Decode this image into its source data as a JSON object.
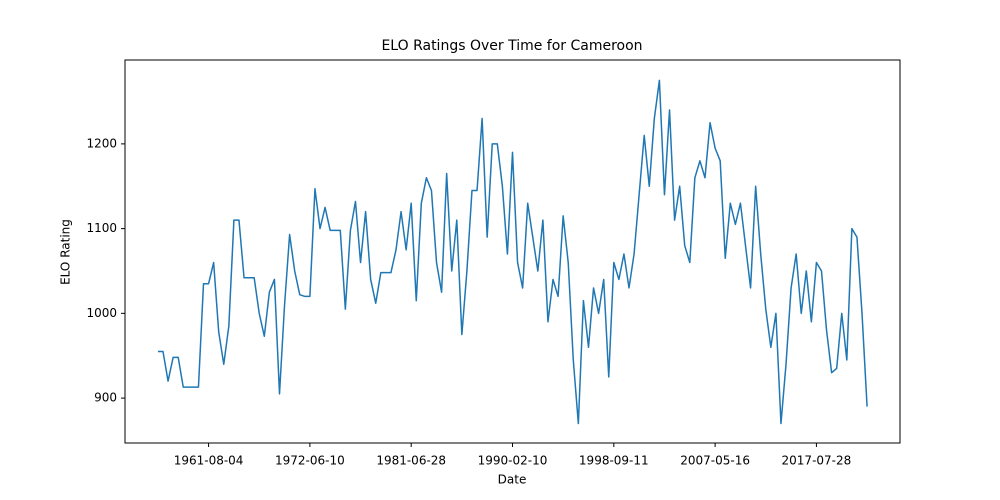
{
  "chart_data": {
    "type": "line",
    "title": "ELO Ratings Over Time for Cameroon",
    "x_label": "Date",
    "y_label": "ELO Rating",
    "categories": [
      null,
      null,
      null,
      null,
      null,
      null,
      null,
      null,
      null,
      null,
      "1961-08-04",
      null,
      null,
      null,
      null,
      null,
      null,
      null,
      null,
      null,
      null,
      null,
      null,
      null,
      null,
      null,
      null,
      null,
      null,
      null,
      "1972-06-10",
      null,
      null,
      null,
      null,
      null,
      null,
      null,
      null,
      null,
      null,
      null,
      null,
      null,
      null,
      null,
      null,
      null,
      null,
      null,
      "1981-06-28",
      null,
      null,
      null,
      null,
      null,
      null,
      null,
      null,
      null,
      null,
      null,
      null,
      null,
      null,
      null,
      null,
      null,
      null,
      null,
      "1990-02-10",
      null,
      null,
      null,
      null,
      null,
      null,
      null,
      null,
      null,
      null,
      null,
      null,
      null,
      null,
      null,
      null,
      null,
      null,
      null,
      "1998-09-11",
      null,
      null,
      null,
      null,
      null,
      null,
      null,
      null,
      null,
      null,
      null,
      null,
      null,
      null,
      null,
      null,
      null,
      null,
      null,
      "2007-05-16",
      null,
      null,
      null,
      null,
      null,
      null,
      null,
      null,
      null,
      null,
      null,
      null,
      null,
      null,
      null,
      null,
      null,
      null,
      null,
      "2017-07-28",
      null,
      null,
      null,
      null,
      null,
      null,
      null,
      null,
      null,
      null
    ],
    "series": [
      {
        "name": "Cameroon",
        "color": "#1f77b4",
        "values": [
          955,
          955,
          920,
          948,
          948,
          913,
          913,
          913,
          913,
          1035,
          1035,
          1060,
          978,
          940,
          985,
          1110,
          1110,
          1042,
          1042,
          1042,
          1000,
          973,
          1025,
          1040,
          905,
          1010,
          1093,
          1050,
          1022,
          1020,
          1020,
          1147,
          1100,
          1125,
          1098,
          1098,
          1098,
          1005,
          1098,
          1132,
          1060,
          1120,
          1040,
          1012,
          1048,
          1048,
          1048,
          1075,
          1120,
          1075,
          1130,
          1015,
          1130,
          1160,
          1145,
          1060,
          1025,
          1165,
          1050,
          1110,
          975,
          1050,
          1145,
          1145,
          1230,
          1090,
          1200,
          1200,
          1150,
          1070,
          1190,
          1060,
          1030,
          1130,
          1090,
          1050,
          1110,
          990,
          1040,
          1020,
          1115,
          1060,
          945,
          870,
          1015,
          960,
          1030,
          1000,
          1040,
          925,
          1060,
          1040,
          1070,
          1030,
          1070,
          1140,
          1210,
          1150,
          1230,
          1275,
          1140,
          1240,
          1110,
          1150,
          1080,
          1060,
          1160,
          1180,
          1160,
          1225,
          1195,
          1180,
          1065,
          1130,
          1105,
          1130,
          1080,
          1030,
          1150,
          1070,
          1005,
          960,
          1000,
          870,
          940,
          1030,
          1070,
          1000,
          1050,
          990,
          1060,
          1050,
          980,
          930,
          935,
          1000,
          945,
          1100,
          1090,
          1000,
          890
        ]
      }
    ],
    "ylim": [
      847,
      1299
    ],
    "yticks": [
      900,
      1000,
      1100,
      1200
    ]
  }
}
